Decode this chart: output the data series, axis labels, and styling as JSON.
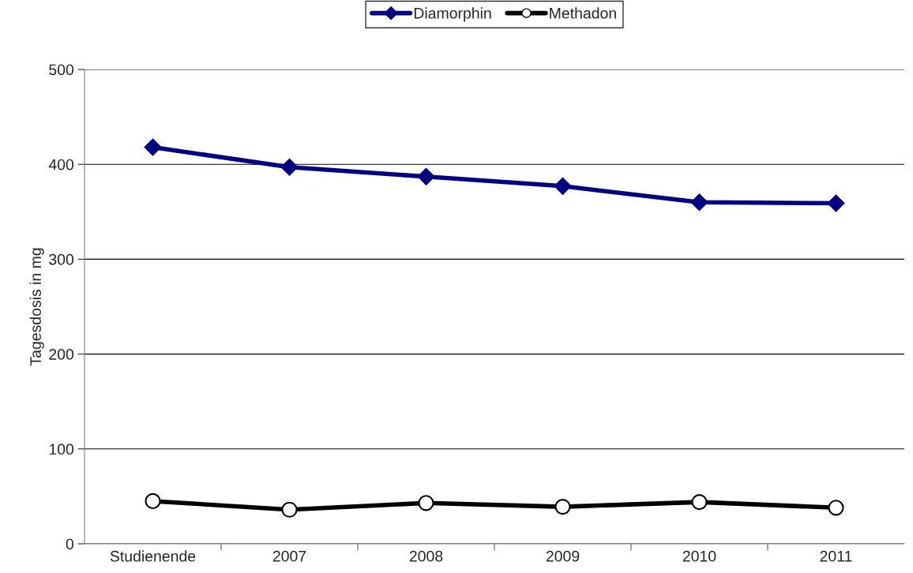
{
  "chart_data": {
    "type": "line",
    "ylabel": "Tagesdosis in mg",
    "categories": [
      "Studienende",
      "2007",
      "2008",
      "2009",
      "2010",
      "2011"
    ],
    "series": [
      {
        "name": "Diamorphin",
        "color": "#000080",
        "marker": "diamond",
        "values": [
          418,
          397,
          387,
          377,
          360,
          359
        ]
      },
      {
        "name": "Methadon",
        "color": "#000000",
        "marker": "circle",
        "values": [
          45,
          36,
          43,
          39,
          44,
          38
        ]
      }
    ],
    "ylim": [
      0,
      500
    ],
    "yticks": [
      0,
      100,
      200,
      300,
      400,
      500
    ],
    "grid": "y",
    "legend": "top",
    "line_style": "solid"
  }
}
